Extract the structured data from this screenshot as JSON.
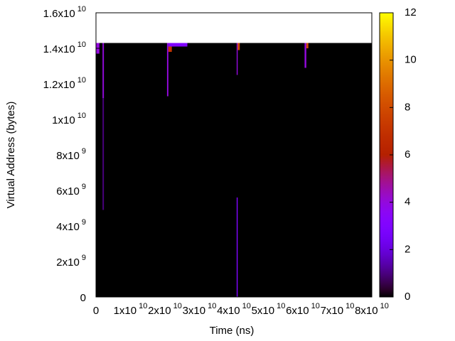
{
  "chart_data": {
    "type": "heatmap",
    "x_label": "Time (ns)",
    "y_label": "Virtual Address (bytes)",
    "xlim": [
      0,
      80000000000
    ],
    "ylim": [
      0,
      16000000000
    ],
    "clim": [
      0,
      12
    ],
    "xticks": [
      0,
      {
        "value": 10000000000,
        "label": "1x10 10"
      },
      {
        "value": 20000000000,
        "label": "2x10 10"
      },
      {
        "value": 30000000000,
        "label": "3x10 10"
      },
      {
        "value": 40000000000,
        "label": "4x10 10"
      },
      {
        "value": 50000000000,
        "label": "5x10 10"
      },
      {
        "value": 60000000000,
        "label": "6x10 10"
      },
      {
        "value": 70000000000,
        "label": "7x10 10"
      },
      {
        "value": 80000000000,
        "label": "8x10 10"
      }
    ],
    "yticks": [
      0,
      {
        "value": 2000000000,
        "label": "2x10 9"
      },
      {
        "value": 4000000000,
        "label": "4x10 9"
      },
      {
        "value": 6000000000,
        "label": "6x10 9"
      },
      {
        "value": 8000000000,
        "label": "8x10 9"
      },
      {
        "value": 10000000000,
        "label": "1x10 10"
      },
      {
        "value": 12000000000,
        "label": "1.2x10 10"
      },
      {
        "value": 14000000000,
        "label": "1.4x10 10"
      },
      {
        "value": 16000000000,
        "label": "1.6x10 10"
      }
    ],
    "cticks": [
      0,
      2,
      4,
      6,
      8,
      10,
      12
    ],
    "palette": "rgbformulae 7,5,15",
    "cells": [
      {
        "x0": 0,
        "x1": 80000000000,
        "y0": 0,
        "y1": 14300000000,
        "value": 0
      },
      {
        "x0": 0,
        "x1": 1000000000,
        "y0": 13700000000,
        "y1": 14300000000,
        "value": 4
      },
      {
        "x0": 1900000000,
        "x1": 2300000000,
        "y0": 4900000000,
        "y1": 11200000000,
        "value": 1
      },
      {
        "x0": 1900000000,
        "x1": 2300000000,
        "y0": 11200000000,
        "y1": 14300000000,
        "value": 4
      },
      {
        "x0": 20600000000,
        "x1": 21000000000,
        "y0": 11300000000,
        "y1": 14300000000,
        "value": 4
      },
      {
        "x0": 21000000000,
        "x1": 22000000000,
        "y0": 13800000000,
        "y1": 14100000000,
        "value": 7
      },
      {
        "x0": 21000000000,
        "x1": 26500000000,
        "y0": 14100000000,
        "y1": 14300000000,
        "value": 3
      },
      {
        "x0": 40800000000,
        "x1": 41100000000,
        "y0": 0,
        "y1": 5600000000,
        "value": 3
      },
      {
        "x0": 40800000000,
        "x1": 41100000000,
        "y0": 12500000000,
        "y1": 14300000000,
        "value": 4
      },
      {
        "x0": 41100000000,
        "x1": 41700000000,
        "y0": 13900000000,
        "y1": 14300000000,
        "value": 8
      },
      {
        "x0": 60500000000,
        "x1": 61000000000,
        "y0": 12900000000,
        "y1": 14300000000,
        "value": 4
      },
      {
        "x0": 61000000000,
        "x1": 61600000000,
        "y0": 14000000000,
        "y1": 14300000000,
        "value": 8
      }
    ]
  }
}
